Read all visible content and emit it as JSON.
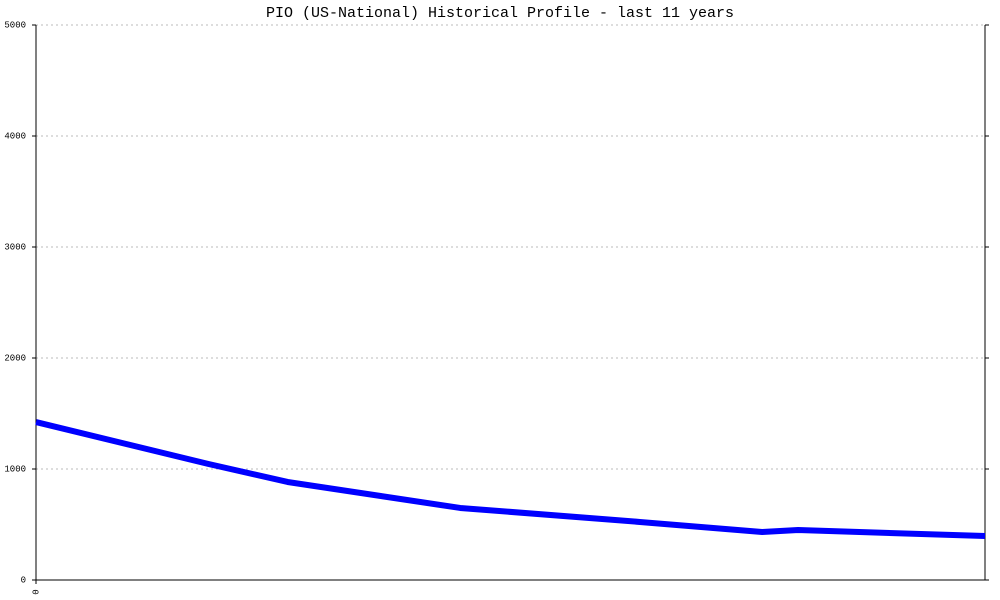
{
  "chart_data": {
    "type": "line",
    "title": "PIO (US-National) Historical Profile - last 11 years",
    "x": [
      0,
      24,
      35,
      59,
      84,
      101,
      106,
      132
    ],
    "series": [
      {
        "name": "PIO",
        "color": "#0000ff",
        "values": [
          1423,
          1045,
          883,
          649,
          523,
          432,
          450,
          396
        ]
      }
    ],
    "xlim": [
      0,
      132
    ],
    "xticks": [
      0
    ],
    "ylim": [
      0,
      5000
    ],
    "yticks": [
      0,
      1000,
      2000,
      3000,
      4000,
      5000
    ],
    "grid": true
  }
}
